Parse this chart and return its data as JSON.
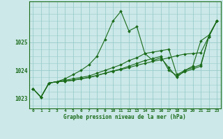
{
  "title": "Graphe pression niveau de la mer (hPa)",
  "bg_color": "#cce8e8",
  "grid_color": "#99cccc",
  "line_color": "#1a6b1a",
  "ylim": [
    1022.65,
    1026.45
  ],
  "yticks": [
    1023,
    1024,
    1025
  ],
  "xlim": [
    -0.5,
    23.5
  ],
  "xticks": [
    0,
    1,
    2,
    3,
    4,
    5,
    6,
    7,
    8,
    9,
    10,
    11,
    12,
    13,
    14,
    15,
    16,
    17,
    18,
    19,
    20,
    21,
    22,
    23
  ],
  "series": [
    [
      1023.35,
      1023.05,
      1023.55,
      1023.6,
      1023.7,
      1023.85,
      1024.0,
      1024.2,
      1024.5,
      1025.1,
      1025.75,
      1026.1,
      1025.4,
      1025.55,
      1024.6,
      1024.35,
      1024.45,
      1024.1,
      1023.75,
      1024.0,
      1024.15,
      1025.05,
      1025.25,
      1025.75
    ],
    [
      1023.35,
      1023.05,
      1023.55,
      1023.6,
      1023.65,
      1023.7,
      1023.75,
      1023.8,
      1023.9,
      1024.0,
      1024.1,
      1024.2,
      1024.35,
      1024.45,
      1024.6,
      1024.65,
      1024.7,
      1024.75,
      1023.85,
      1024.0,
      1024.1,
      1024.2,
      1025.2,
      1025.75
    ],
    [
      1023.35,
      1023.05,
      1023.55,
      1023.6,
      1023.62,
      1023.65,
      1023.7,
      1023.75,
      1023.82,
      1023.9,
      1023.98,
      1024.05,
      1024.15,
      1024.25,
      1024.35,
      1024.42,
      1024.5,
      1024.0,
      1023.82,
      1023.95,
      1024.05,
      1024.15,
      1025.2,
      1025.75
    ],
    [
      1023.35,
      1023.05,
      1023.55,
      1023.6,
      1023.62,
      1023.65,
      1023.7,
      1023.75,
      1023.82,
      1023.9,
      1023.97,
      1024.03,
      1024.1,
      1024.18,
      1024.25,
      1024.32,
      1024.38,
      1024.45,
      1024.52,
      1024.58,
      1024.6,
      1024.63,
      1025.2,
      1025.75
    ]
  ]
}
